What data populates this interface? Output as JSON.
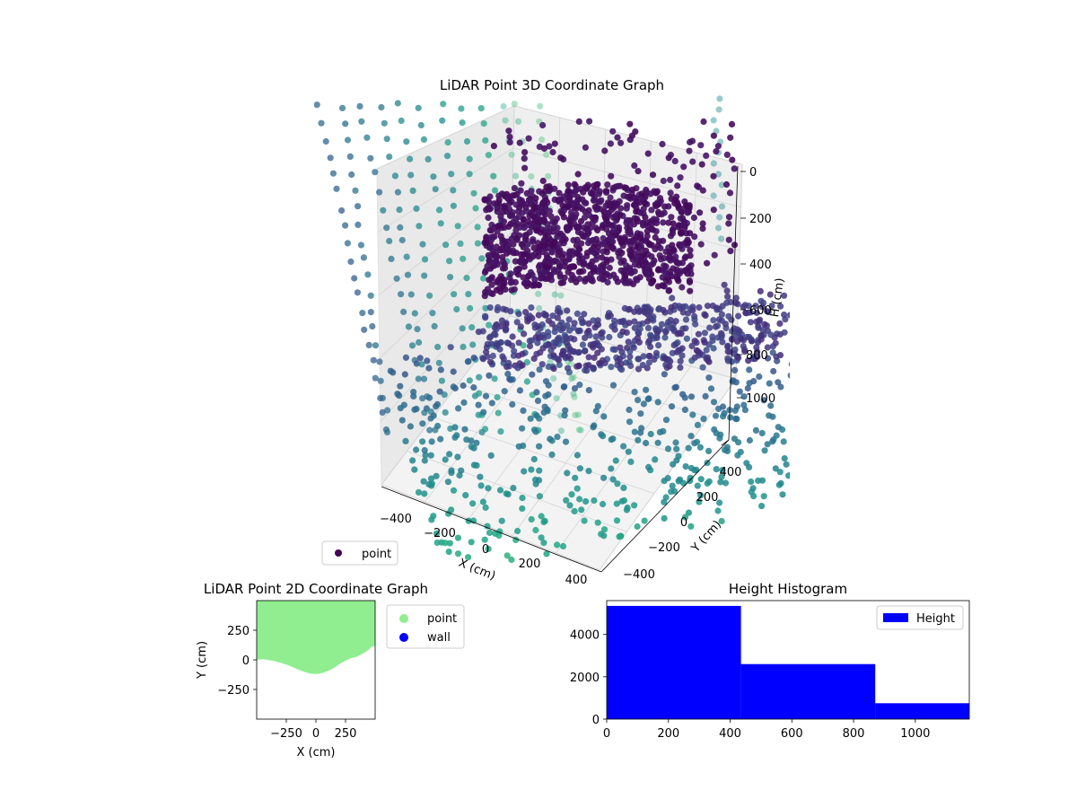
{
  "chart_data": [
    {
      "type": "scatter",
      "projection": "3d",
      "title": "LiDAR Point 3D Coordinate Graph",
      "xlabel": "X (cm)",
      "ylabel": "Y (cm)",
      "zlabel": "H (cm)",
      "xticks": [
        "−400",
        "−200",
        "0",
        "200",
        "400"
      ],
      "yticks": [
        "−400",
        "−200",
        "0",
        "200",
        "400"
      ],
      "zticks": [
        "0",
        "200",
        "400",
        "600",
        "800",
        "1000"
      ],
      "zinverted": true,
      "colormap": "viridis",
      "grid": true,
      "legend": {
        "position": "bottom-left",
        "entries": [
          {
            "label": "point",
            "color": "#440154"
          }
        ]
      },
      "note": "Dense scan: a tall wall sheet near H 200–500 cm and a sloped sheet near H 600–800 cm rising from a scattered floor; color encodes height."
    },
    {
      "type": "scatter",
      "title": "LiDAR Point 2D Coordinate Graph",
      "xlabel": "X (cm)",
      "ylabel": "Y (cm)",
      "xlim": [
        -500,
        500
      ],
      "ylim": [
        -500,
        500
      ],
      "xticks": [
        "−250",
        "0",
        "250"
      ],
      "yticks": [
        "−250",
        "0",
        "250"
      ],
      "fill_color": "#90ee90",
      "boundary": [
        [
          -500,
          500
        ],
        [
          500,
          500
        ],
        [
          500,
          120
        ],
        [
          470,
          110
        ],
        [
          440,
          80
        ],
        [
          400,
          55
        ],
        [
          370,
          40
        ],
        [
          340,
          25
        ],
        [
          300,
          15
        ],
        [
          250,
          -5
        ],
        [
          200,
          -35
        ],
        [
          150,
          -70
        ],
        [
          100,
          -95
        ],
        [
          50,
          -112
        ],
        [
          0,
          -120
        ],
        [
          -50,
          -115
        ],
        [
          -100,
          -100
        ],
        [
          -150,
          -82
        ],
        [
          -200,
          -60
        ],
        [
          -250,
          -40
        ],
        [
          -300,
          -25
        ],
        [
          -350,
          -10
        ],
        [
          -400,
          -2
        ],
        [
          -450,
          5
        ],
        [
          -480,
          3
        ],
        [
          -500,
          2
        ]
      ],
      "legend": {
        "position": "outside-right",
        "entries": [
          {
            "label": "point",
            "color": "#90ee90"
          },
          {
            "label": "wall",
            "color": "#0000ff"
          }
        ]
      }
    },
    {
      "type": "bar",
      "title": "Height Histogram",
      "bins": [
        [
          0,
          435
        ],
        [
          435,
          870
        ],
        [
          870,
          1175
        ]
      ],
      "values": [
        5350,
        2600,
        750
      ],
      "xlim": [
        0,
        1175
      ],
      "ylim": [
        0,
        5600
      ],
      "xticks": [
        "0",
        "200",
        "400",
        "600",
        "800",
        "1000"
      ],
      "yticks": [
        "0",
        "2000",
        "4000"
      ],
      "color": "#0000ff",
      "legend": {
        "position": "top-right",
        "entries": [
          {
            "label": "Height",
            "color": "#0000ff"
          }
        ]
      }
    }
  ]
}
